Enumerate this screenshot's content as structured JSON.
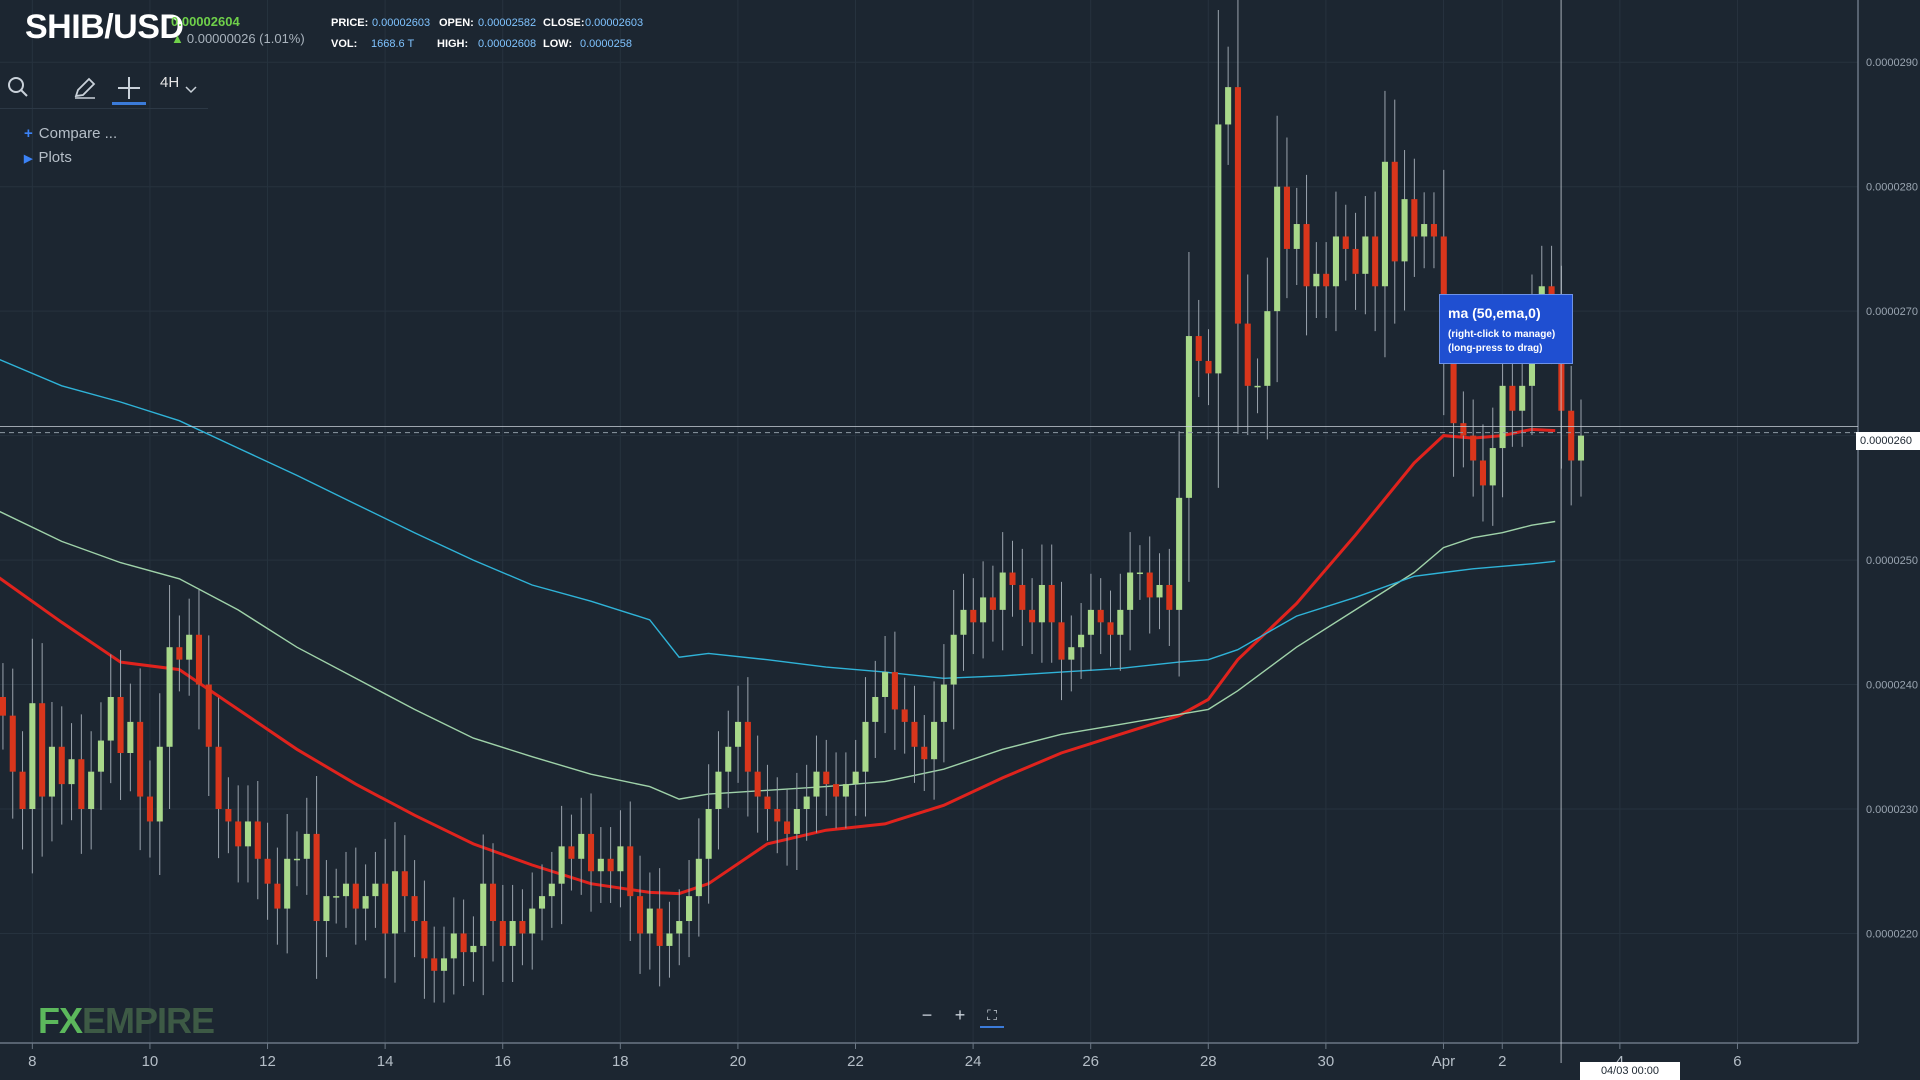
{
  "header": {
    "symbol": "SHIB/USD",
    "last_price": "0.00002604",
    "change": "0.00000026 (1.01%)",
    "price_label": "PRICE:",
    "price_value": "0.00002603",
    "open_label": "OPEN:",
    "open_value": "0.00002582",
    "close_label": "CLOSE:",
    "close_value": "0.00002603",
    "vol_label": "VOL:",
    "vol_value": "1668.6 T",
    "high_label": "HIGH:",
    "high_value": "0.00002608",
    "low_label": "LOW:",
    "low_value": "0.0000258"
  },
  "toolbar": {
    "timeframe": "4H",
    "icons": [
      "search-icon",
      "pencil-icon",
      "crosshair-icon",
      "chevron-down-icon"
    ]
  },
  "menu": {
    "compare": "Compare ...",
    "plots": "Plots"
  },
  "tooltip": {
    "title": "ma (50,ema,0)",
    "line1": "(right-click to manage)",
    "line2": "(long-press to drag)"
  },
  "current_price_tag": "0.0000260",
  "crosshair_date": "04/03 00:00",
  "logo": {
    "part1": "FX",
    "part2": "EMPIRE"
  },
  "colors": {
    "background": "#1c2631",
    "bull": "#a8d88a",
    "bear": "#d9361c",
    "ema50": "#e0231d",
    "ma_green": "#9fd2a9",
    "ma_blue": "#2fb3d8"
  },
  "chart_data": {
    "type": "candlestick",
    "title": "",
    "xlabel": "",
    "ylabel": "",
    "x_ticks": [
      "8",
      "10",
      "12",
      "14",
      "16",
      "18",
      "20",
      "22",
      "24",
      "26",
      "28",
      "30",
      "Apr",
      "2",
      "4",
      "6"
    ],
    "x_tick_days": [
      8,
      10,
      12,
      14,
      16,
      18,
      20,
      22,
      24,
      26,
      28,
      30,
      32,
      33,
      35,
      37
    ],
    "x_range": [
      7.45,
      39.05
    ],
    "y_ticks": [
      "0.0000220",
      "0.0000230",
      "0.0000240",
      "0.0000250",
      "0.0000260",
      "0.0000270",
      "0.0000280",
      "0.0000290"
    ],
    "y_tick_values": [
      2.2e-05,
      2.3e-05,
      2.4e-05,
      2.5e-05,
      2.6e-05,
      2.7e-05,
      2.8e-05,
      2.9e-05
    ],
    "ylim": [
      2.112e-05,
      2.95e-05
    ],
    "grid": true,
    "candle_day_start": 7.5,
    "candle_day_step": 0.1667,
    "candles_close_x1e8": [
      2375,
      2330,
      2300,
      2385,
      2310,
      2350,
      2320,
      2340,
      2300,
      2330,
      2355,
      2390,
      2345,
      2370,
      2310,
      2290,
      2350,
      2430,
      2420,
      2440,
      2400,
      2350,
      2300,
      2290,
      2270,
      2290,
      2260,
      2240,
      2220,
      2260,
      2260,
      2280,
      2210,
      2230,
      2230,
      2240,
      2220,
      2230,
      2240,
      2200,
      2250,
      2230,
      2210,
      2180,
      2170,
      2180,
      2200,
      2185,
      2190,
      2240,
      2210,
      2190,
      2210,
      2200,
      2220,
      2230,
      2240,
      2270,
      2260,
      2280,
      2250,
      2260,
      2250,
      2270,
      2230,
      2200,
      2220,
      2190,
      2200,
      2210,
      2230,
      2260,
      2300,
      2330,
      2350,
      2370,
      2330,
      2310,
      2300,
      2290,
      2280,
      2300,
      2310,
      2330,
      2320,
      2310,
      2320,
      2330,
      2370,
      2390,
      2410,
      2380,
      2370,
      2350,
      2340,
      2370,
      2400,
      2440,
      2460,
      2450,
      2470,
      2460,
      2490,
      2480,
      2460,
      2450,
      2480,
      2450,
      2420,
      2430,
      2440,
      2460,
      2450,
      2440,
      2460,
      2490,
      2490,
      2470,
      2480,
      2460,
      2550,
      2680,
      2660,
      2650,
      2850,
      2880,
      2690,
      2640,
      2640,
      2700,
      2800,
      2750,
      2770,
      2720,
      2730,
      2720,
      2760,
      2750,
      2730,
      2760,
      2720,
      2820,
      2740,
      2790,
      2760,
      2770,
      2760,
      2670,
      2610,
      2600,
      2580,
      2560,
      2590,
      2640,
      2620,
      2640,
      2690,
      2720,
      2690,
      2620,
      2580,
      2600
    ],
    "series": [
      {
        "name": "ma (50,ema,0)",
        "days": [
          7.4,
          8.5,
          9.5,
          10.5,
          11.5,
          12.5,
          13.5,
          14.5,
          15.5,
          16.5,
          17.5,
          18.5,
          19.0,
          19.5,
          20.5,
          21.5,
          22.5,
          23.5,
          24.5,
          25.5,
          26.5,
          27.5,
          28.0,
          28.5,
          29.5,
          30.5,
          31.5,
          32.0,
          32.5,
          33.0,
          33.5,
          33.9
        ],
        "values_x1e8": [
          2487,
          2450,
          2418,
          2412,
          2380,
          2348,
          2320,
          2295,
          2272,
          2255,
          2240,
          2233,
          2232,
          2240,
          2272,
          2283,
          2288,
          2303,
          2325,
          2345,
          2360,
          2375,
          2388,
          2420,
          2465,
          2520,
          2578,
          2600,
          2598,
          2600,
          2605,
          2604
        ]
      },
      {
        "name": "",
        "days": [
          7.4,
          8.5,
          9.5,
          10.5,
          11.5,
          12.5,
          13.5,
          14.5,
          15.5,
          16.5,
          17.5,
          18.5,
          19.0,
          19.5,
          20.5,
          21.5,
          22.5,
          23.5,
          24.5,
          25.5,
          26.5,
          27.5,
          28.0,
          28.5,
          29.5,
          30.5,
          31.5,
          32.0,
          32.5,
          33.0,
          33.5,
          33.9
        ],
        "values_x1e8": [
          2540,
          2515,
          2498,
          2485,
          2460,
          2430,
          2405,
          2380,
          2357,
          2342,
          2328,
          2318,
          2308,
          2312,
          2315,
          2318,
          2322,
          2332,
          2348,
          2360,
          2368,
          2376,
          2380,
          2395,
          2430,
          2460,
          2490,
          2510,
          2518,
          2522,
          2528,
          2531
        ]
      },
      {
        "name": "",
        "days": [
          7.4,
          8.5,
          9.5,
          10.5,
          11.5,
          12.5,
          13.5,
          14.5,
          15.5,
          16.5,
          17.5,
          18.5,
          19.0,
          19.5,
          20.5,
          21.5,
          22.5,
          23.5,
          24.5,
          25.5,
          26.5,
          27.5,
          28.0,
          28.5,
          29.5,
          30.5,
          31.5,
          32.0,
          32.5,
          33.0,
          33.5,
          33.9
        ],
        "values_x1e8": [
          2662,
          2640,
          2627,
          2612,
          2590,
          2568,
          2545,
          2522,
          2500,
          2480,
          2467,
          2452,
          2422,
          2425,
          2420,
          2414,
          2410,
          2405,
          2407,
          2410,
          2413,
          2418,
          2420,
          2428,
          2455,
          2470,
          2487,
          2490,
          2493,
          2495,
          2497,
          2499
        ]
      }
    ],
    "last_price_x1e8": 2604,
    "crosshair_day": 34.0
  }
}
